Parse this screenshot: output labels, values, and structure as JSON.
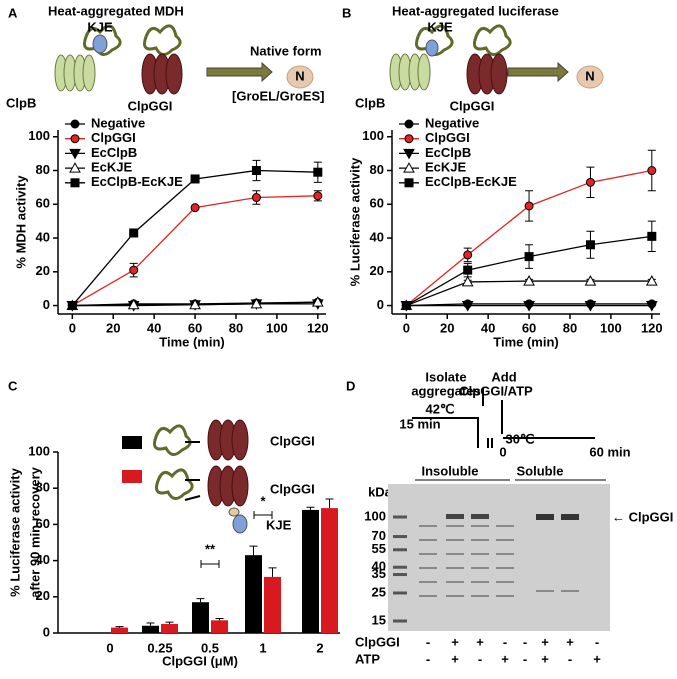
{
  "chart_data": [
    {
      "type": "line",
      "panel_label": "A",
      "title": "Heat-aggregated MDH",
      "annotations": [
        "KJE",
        "ClpB",
        "ClpGGI",
        "Native form",
        "[GroEL/GroES]",
        "N"
      ],
      "xlabel": "Time (min)",
      "ylabel": "% MDH activity",
      "x": [
        0,
        30,
        60,
        90,
        120
      ],
      "xlim": [
        -7,
        124
      ],
      "xticks": [
        0,
        20,
        40,
        60,
        80,
        100,
        120
      ],
      "ylim": [
        -5,
        104
      ],
      "yticks": [
        0,
        20,
        40,
        60,
        80,
        100
      ],
      "series": [
        {
          "name": "Negative",
          "color": "#000000",
          "marker": "circle",
          "values": [
            0,
            1,
            1,
            1.5,
            2
          ],
          "errors": [
            0,
            0,
            0,
            0,
            0
          ]
        },
        {
          "name": "ClpGGI",
          "color": "#e32420",
          "marker": "circle",
          "values": [
            0,
            21,
            58,
            64,
            65
          ],
          "errors": [
            0,
            4,
            1,
            4,
            3
          ]
        },
        {
          "name": "EcClpB",
          "color": "#000000",
          "marker": "triangle-down",
          "values": [
            0,
            0,
            0.5,
            1,
            1
          ],
          "errors": [
            0,
            0,
            0,
            0,
            0
          ]
        },
        {
          "name": "EcKJE",
          "color": "#000000",
          "marker": "triangle-up-open",
          "values": [
            0,
            0.5,
            0.5,
            1,
            2
          ],
          "errors": [
            0,
            2,
            0,
            0,
            0
          ]
        },
        {
          "name": "EcClpB-EcKJE",
          "color": "#000000",
          "marker": "square",
          "values": [
            0,
            43,
            75,
            80,
            79
          ],
          "errors": [
            0,
            1,
            1,
            6,
            6
          ]
        }
      ]
    },
    {
      "type": "line",
      "panel_label": "B",
      "title": "Heat-aggregated luciferase",
      "annotations": [
        "KJE",
        "ClpB",
        "ClpGGI",
        "N"
      ],
      "xlabel": "Time (min)",
      "ylabel": "% Luciferase activity",
      "x": [
        0,
        30,
        60,
        90,
        120
      ],
      "xlim": [
        -7,
        124
      ],
      "xticks": [
        0,
        20,
        40,
        60,
        80,
        100,
        120
      ],
      "ylim": [
        -5,
        104
      ],
      "yticks": [
        0,
        20,
        40,
        60,
        80,
        100
      ],
      "series": [
        {
          "name": "Negative",
          "color": "#000000",
          "marker": "circle",
          "values": [
            0,
            1,
            1,
            1,
            1
          ],
          "errors": [
            0,
            0,
            0,
            0,
            0
          ]
        },
        {
          "name": "ClpGGI",
          "color": "#e32420",
          "marker": "circle",
          "values": [
            0,
            30,
            59,
            73,
            80
          ],
          "errors": [
            0,
            4,
            9,
            9,
            12
          ]
        },
        {
          "name": "EcClpB",
          "color": "#000000",
          "marker": "triangle-down",
          "values": [
            0,
            0,
            0,
            0,
            0
          ],
          "errors": [
            0,
            0,
            0,
            0,
            0
          ]
        },
        {
          "name": "EcKJE",
          "color": "#000000",
          "marker": "triangle-up-open",
          "values": [
            0,
            14,
            14.5,
            14.5,
            14.5
          ],
          "errors": [
            0,
            1,
            1,
            1,
            1
          ]
        },
        {
          "name": "EcClpB-EcKJE",
          "color": "#000000",
          "marker": "square",
          "values": [
            0,
            21,
            29,
            36,
            41
          ],
          "errors": [
            0,
            4,
            7,
            8,
            9
          ]
        }
      ]
    },
    {
      "type": "bar",
      "panel_label": "C",
      "annotations": [
        "ClpGGI",
        "ClpGGI",
        "KJE",
        "**",
        "*"
      ],
      "xlabel": "ClpGGI (μM)",
      "ylabel": [
        "% Luciferase activity",
        "after 90 min recovery"
      ],
      "categories": [
        "0",
        "0.25",
        "0.5",
        "1",
        "2"
      ],
      "ylim": [
        0,
        100
      ],
      "yticks": [
        0,
        20,
        40,
        60,
        80,
        100
      ],
      "series": [
        {
          "color": "#000000",
          "values": [
            0,
            4,
            17,
            43,
            68
          ],
          "errors": [
            0,
            1.5,
            2,
            5,
            1.5
          ]
        },
        {
          "color": "#d71920",
          "values": [
            3,
            5,
            7,
            31,
            69
          ],
          "errors": [
            0.5,
            1,
            1,
            5,
            5
          ]
        }
      ]
    },
    {
      "type": "gel",
      "panel_label": "D",
      "annotations": [
        "Isolate",
        "aggregates",
        "Add",
        "ClpGGI/ATP",
        "42℃",
        "15 min",
        "30℃",
        "0",
        "60 min",
        "Insoluble",
        "Soluble",
        "kDa",
        "← ClpGGI"
      ],
      "ylim": [
        15,
        100
      ],
      "log_scale": true,
      "yticks": [
        100,
        70,
        55,
        40,
        35,
        25,
        15
      ],
      "rows": [
        {
          "name": "ClpGGI",
          "values": [
            "-",
            "+",
            "+",
            "-",
            "-",
            "+",
            "+",
            "-"
          ]
        },
        {
          "name": "ATP",
          "values": [
            "-",
            "+",
            "-",
            "+",
            "-",
            "+",
            "-",
            "+"
          ]
        }
      ]
    }
  ]
}
